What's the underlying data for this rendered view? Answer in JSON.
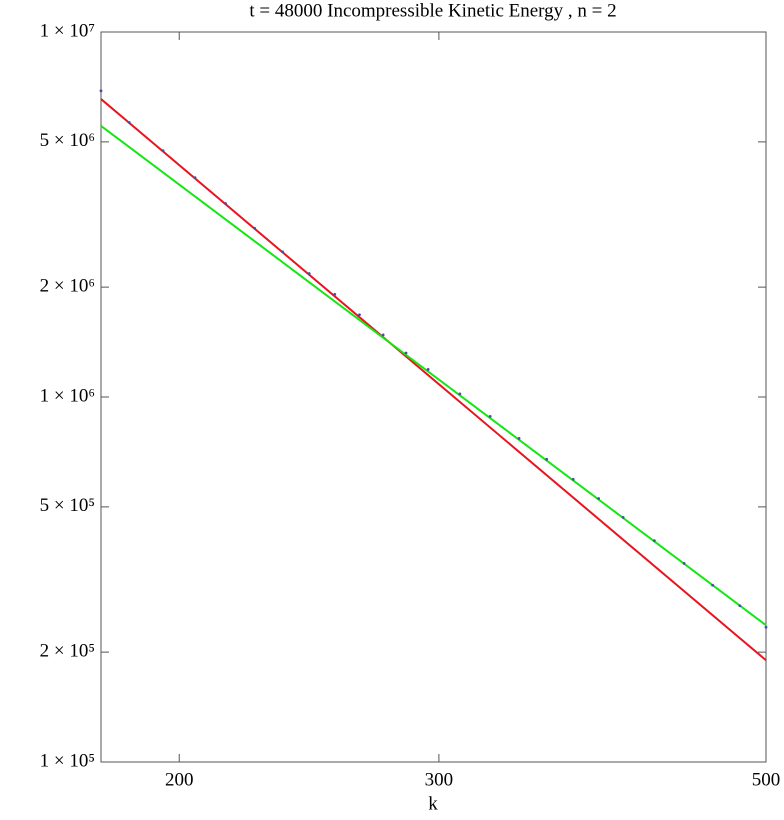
{
  "chart_data": {
    "type": "scatter",
    "title": "t = 48000   Incompressible Kinetic Energy , n = 2",
    "x_label": "k",
    "x_scale": "log",
    "y_scale": "log",
    "xlim": [
      177,
      500
    ],
    "ylim": [
      100000,
      10000000
    ],
    "xticks": [
      200,
      300,
      500
    ],
    "yticks": [
      {
        "value": 100000,
        "label": "1 × 10⁵"
      },
      {
        "value": 200000,
        "label": "2 × 10⁵"
      },
      {
        "value": 500000,
        "label": "5 × 10⁵"
      },
      {
        "value": 1000000,
        "label": "1 × 10⁶"
      },
      {
        "value": 2000000,
        "label": "2 × 10⁶"
      },
      {
        "value": 5000000,
        "label": "5 × 10⁶"
      },
      {
        "value": 10000000,
        "label": "1 × 10⁷"
      }
    ],
    "series": [
      {
        "mode": "points",
        "color": "#4a4aa8",
        "x": [
          177,
          185,
          195,
          205,
          215,
          225,
          235,
          245,
          255,
          265,
          275,
          285,
          295,
          310,
          325,
          340,
          355,
          370,
          385,
          400,
          420,
          440,
          460,
          480,
          500
        ],
        "values": [
          6900000,
          5650000,
          4730000,
          3990000,
          3390000,
          2900000,
          2500000,
          2180000,
          1910000,
          1680000,
          1480000,
          1320000,
          1190000,
          1020000,
          885000,
          770000,
          675000,
          595000,
          527000,
          468000,
          404000,
          350000,
          305000,
          268000,
          234000
        ]
      },
      {
        "mode": "line",
        "color": "#e8141e",
        "x": [
          177,
          500
        ],
        "values": [
          6550000,
          190000
        ]
      },
      {
        "mode": "line",
        "color": "#14e614",
        "x": [
          177,
          500
        ],
        "values": [
          5530000,
          237000
        ]
      }
    ]
  }
}
